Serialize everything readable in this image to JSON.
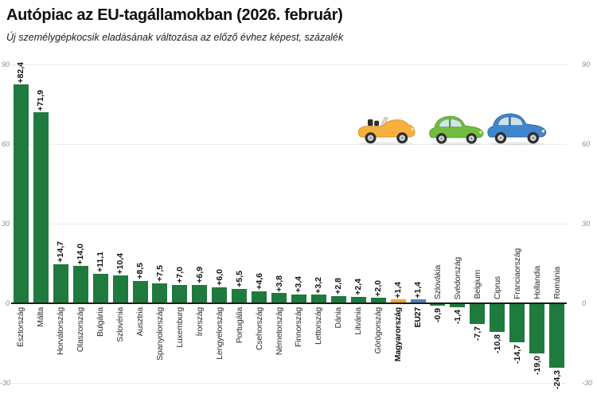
{
  "chart_data": {
    "type": "bar",
    "title": "Autópiac az EU-tagállamokban (2026. február)",
    "subtitle": "Új személygépkocsik eladásának változása az előző évhez képest, százalék",
    "ylim": [
      -30,
      90
    ],
    "y_ticks": [
      90,
      60,
      30,
      0,
      -30
    ],
    "grid": true,
    "value_label_format": "signed, decimal comma",
    "bars": [
      {
        "category": "Észtország",
        "value": 82.4,
        "label": "+82,4",
        "color": "green",
        "bold": false
      },
      {
        "category": "Málta",
        "value": 71.9,
        "label": "+71,9",
        "color": "green",
        "bold": false
      },
      {
        "category": "Horvátország",
        "value": 14.7,
        "label": "+14,7",
        "color": "green",
        "bold": false
      },
      {
        "category": "Olaszország",
        "value": 14.0,
        "label": "+14,0",
        "color": "green",
        "bold": false
      },
      {
        "category": "Bulgária",
        "value": 11.1,
        "label": "+11,1",
        "color": "green",
        "bold": false
      },
      {
        "category": "Szlovénia",
        "value": 10.4,
        "label": "+10,4",
        "color": "green",
        "bold": false
      },
      {
        "category": "Ausztria",
        "value": 8.5,
        "label": "+8,5",
        "color": "green",
        "bold": false
      },
      {
        "category": "Spanyolország",
        "value": 7.5,
        "label": "+7,5",
        "color": "green",
        "bold": false
      },
      {
        "category": "Luxemburg",
        "value": 7.0,
        "label": "+7,0",
        "color": "green",
        "bold": false
      },
      {
        "category": "Írország",
        "value": 6.9,
        "label": "+6,9",
        "color": "green",
        "bold": false
      },
      {
        "category": "Lengyelország",
        "value": 6.0,
        "label": "+6,0",
        "color": "green",
        "bold": false
      },
      {
        "category": "Portugália",
        "value": 5.5,
        "label": "+5,5",
        "color": "green",
        "bold": false
      },
      {
        "category": "Csehország",
        "value": 4.6,
        "label": "+4,6",
        "color": "green",
        "bold": false
      },
      {
        "category": "Németország",
        "value": 3.8,
        "label": "+3,8",
        "color": "green",
        "bold": false
      },
      {
        "category": "Finnország",
        "value": 3.4,
        "label": "+3,4",
        "color": "green",
        "bold": false
      },
      {
        "category": "Lettország",
        "value": 3.2,
        "label": "+3,2",
        "color": "green",
        "bold": false
      },
      {
        "category": "Dánia",
        "value": 2.8,
        "label": "+2,8",
        "color": "green",
        "bold": false
      },
      {
        "category": "Litvánia",
        "value": 2.4,
        "label": "+2,4",
        "color": "green",
        "bold": false
      },
      {
        "category": "Görögország",
        "value": 2.0,
        "label": "+2,0",
        "color": "green",
        "bold": false
      },
      {
        "category": "Magyarország",
        "value": 1.4,
        "label": "+1,4",
        "color": "orange",
        "bold": true
      },
      {
        "category": "EU27",
        "value": 1.4,
        "label": "+1,4",
        "color": "blue",
        "bold": true
      },
      {
        "category": "Szlovákia",
        "value": -0.9,
        "label": "-0,9",
        "color": "green",
        "bold": false
      },
      {
        "category": "Svédország",
        "value": -1.4,
        "label": "-1,4",
        "color": "green",
        "bold": false
      },
      {
        "category": "Belgium",
        "value": -7.7,
        "label": "-7,7",
        "color": "green",
        "bold": false
      },
      {
        "category": "Ciprus",
        "value": -10.8,
        "label": "-10,8",
        "color": "green",
        "bold": false
      },
      {
        "category": "Franciaország",
        "value": -14.7,
        "label": "-14,7",
        "color": "green",
        "bold": false
      },
      {
        "category": "Hollandia",
        "value": -19.0,
        "label": "-19,0",
        "color": "green",
        "bold": false
      },
      {
        "category": "Románia",
        "value": -24.3,
        "label": "-24,3",
        "color": "green",
        "bold": false
      }
    ]
  },
  "colors": {
    "green": "#1f7a3d",
    "orange": "#f0a62f",
    "blue": "#4d82bf",
    "gridline": "#ececec",
    "zero_axis": "#1b1b1b",
    "tick_label": "#8e8e8e"
  },
  "decor": {
    "cars": [
      {
        "name": "yellow-convertible-icon",
        "type": "convertible",
        "body": "#f6b03e",
        "shade": "#db8d26",
        "window": "#d3dce1"
      },
      {
        "name": "green-car-icon",
        "type": "hatch",
        "body": "#72bd3f",
        "shade": "#4c9a2b",
        "window": "#d2e3ee"
      },
      {
        "name": "blue-car-icon",
        "type": "hatch",
        "body": "#3f86cd",
        "shade": "#2c65a8",
        "window": "#cfe0ec"
      }
    ]
  }
}
